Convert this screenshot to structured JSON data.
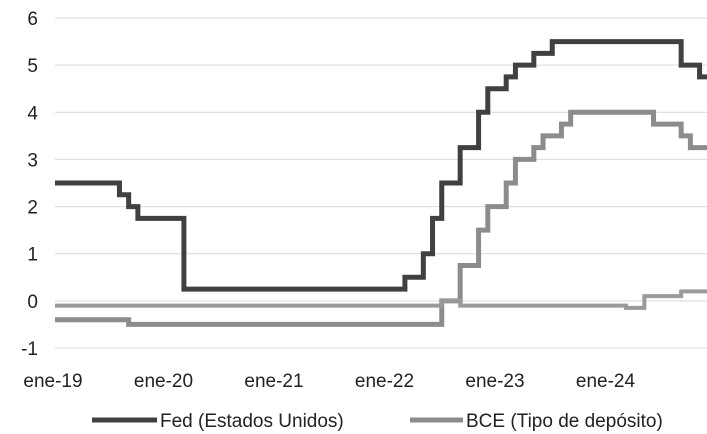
{
  "chart_data": {
    "type": "line",
    "title": "",
    "xlabel": "",
    "ylabel": "",
    "ylim": [
      -1,
      6
    ],
    "xlim": [
      "2019-01",
      "2024-12"
    ],
    "y_ticks": [
      "6",
      "5",
      "4",
      "3",
      "2",
      "1",
      "0",
      "-1"
    ],
    "x_ticks": [
      "ene-19",
      "ene-20",
      "ene-21",
      "ene-22",
      "ene-23",
      "ene-24"
    ],
    "x_tick_dates": [
      "2019-01",
      "2020-01",
      "2021-01",
      "2022-01",
      "2023-01",
      "2024-01"
    ],
    "grid": "horizontal",
    "legend_position": "bottom",
    "series": [
      {
        "name": "Fed (Estados Unidos)",
        "color": "#404040",
        "points": [
          [
            "2019-01",
            2.5
          ],
          [
            "2019-08",
            2.25
          ],
          [
            "2019-09",
            2.0
          ],
          [
            "2019-10",
            1.75
          ],
          [
            "2020-03",
            0.25
          ],
          [
            "2022-03",
            0.5
          ],
          [
            "2022-05",
            1.0
          ],
          [
            "2022-06",
            1.75
          ],
          [
            "2022-07",
            2.5
          ],
          [
            "2022-09",
            3.25
          ],
          [
            "2022-11",
            4.0
          ],
          [
            "2022-12",
            4.5
          ],
          [
            "2023-02",
            4.75
          ],
          [
            "2023-03",
            5.0
          ],
          [
            "2023-05",
            5.25
          ],
          [
            "2023-07",
            5.5
          ],
          [
            "2024-09",
            5.0
          ],
          [
            "2024-11",
            4.75
          ],
          [
            "2024-12",
            4.75
          ]
        ]
      },
      {
        "name": "BCE (Tipo de depósito)",
        "color": "#8c8c8c",
        "points": [
          [
            "2019-01",
            -0.4
          ],
          [
            "2019-09",
            -0.5
          ],
          [
            "2022-07",
            0.0
          ],
          [
            "2022-09",
            0.75
          ],
          [
            "2022-11",
            1.5
          ],
          [
            "2022-12",
            2.0
          ],
          [
            "2023-02",
            2.5
          ],
          [
            "2023-03",
            3.0
          ],
          [
            "2023-05",
            3.25
          ],
          [
            "2023-06",
            3.5
          ],
          [
            "2023-08",
            3.75
          ],
          [
            "2023-09",
            4.0
          ],
          [
            "2024-06",
            3.75
          ],
          [
            "2024-09",
            3.5
          ],
          [
            "2024-10",
            3.25
          ],
          [
            "2024-12",
            3.25
          ]
        ]
      },
      {
        "name": "",
        "color": "#9a9a9a",
        "points": [
          [
            "2019-01",
            -0.1
          ],
          [
            "2022-06",
            -0.1
          ],
          [
            "2022-07",
            0.0
          ],
          [
            "2022-08",
            0.0
          ],
          [
            "2022-09",
            -0.1
          ],
          [
            "2024-02",
            -0.1
          ],
          [
            "2024-03",
            -0.15
          ],
          [
            "2024-05",
            0.1
          ],
          [
            "2024-09",
            0.2
          ],
          [
            "2024-12",
            0.2
          ]
        ]
      }
    ]
  }
}
